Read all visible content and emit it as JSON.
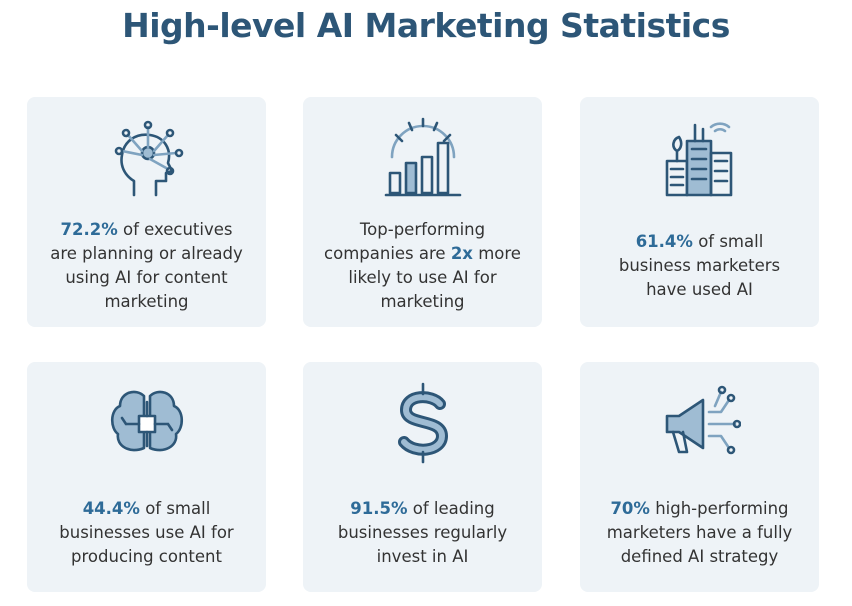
{
  "title": "High-level AI Marketing Statistics",
  "cards": [
    {
      "highlight": "72.2%",
      "text": "of executives are planning or already using AI for content marketing"
    },
    {
      "lead": "Top-performing companies are",
      "highlight": "2x",
      "text": "more likely to use AI for marketing"
    },
    {
      "highlight": "61.4%",
      "text": "of small business marketers have used AI"
    },
    {
      "highlight": "44.4%",
      "text": "of small businesses use AI for producing content"
    },
    {
      "highlight": "91.5%",
      "text": "of leading businesses regularly invest in AI"
    },
    {
      "highlight": "70%",
      "text": "high-performing marketers have a fully defined AI strategy"
    }
  ]
}
